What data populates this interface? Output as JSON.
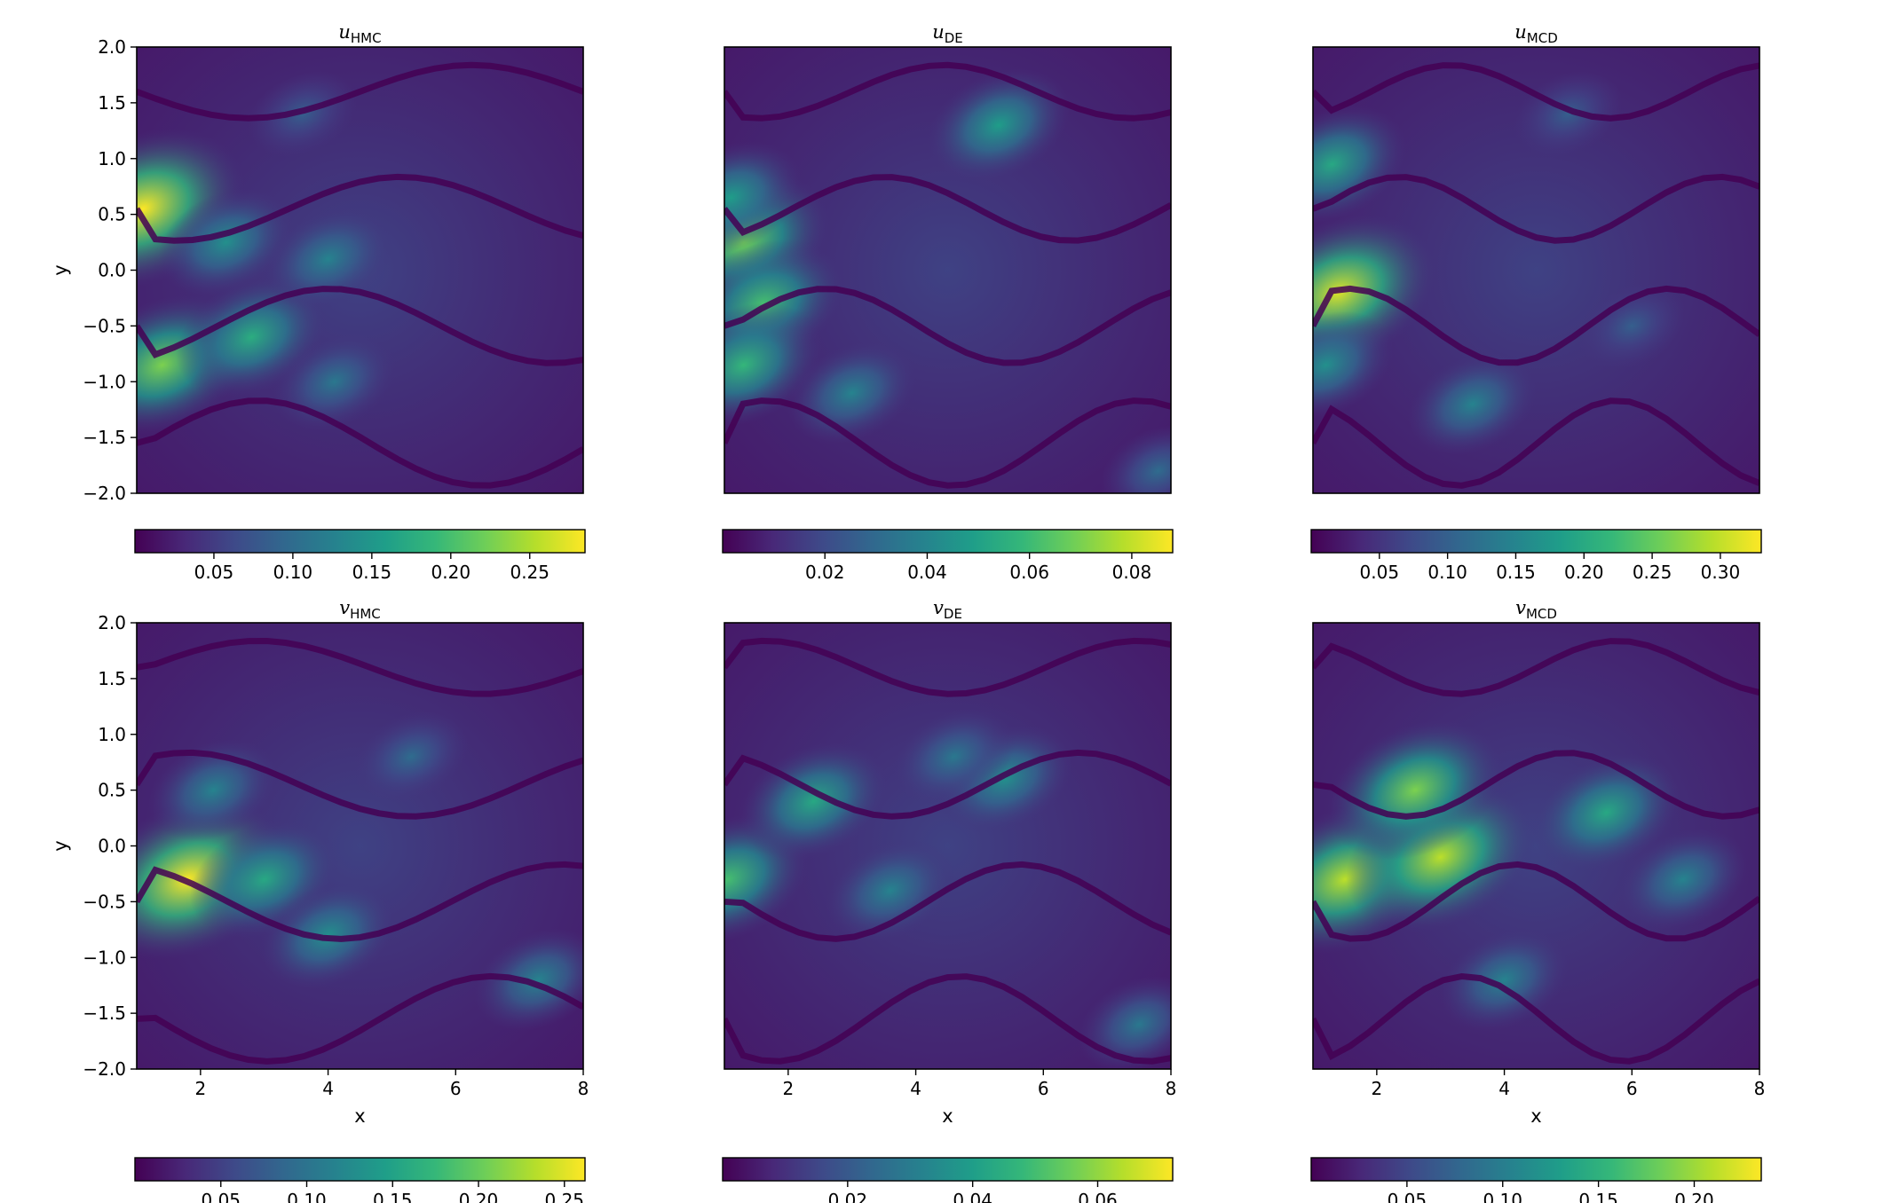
{
  "chart_data": [
    {
      "type": "heatmap",
      "title_main": "u",
      "title_sub": "HMC",
      "xlabel": "",
      "ylabel": "y",
      "xlim": [
        1,
        8
      ],
      "ylim": [
        -2,
        2
      ],
      "xticks": [],
      "yticks": [
        "2.0",
        "1.5",
        "1.0",
        "0.5",
        "0.0",
        "−0.5",
        "−1.0",
        "−1.5",
        "−2.0"
      ],
      "colormap": "viridis",
      "colorbar": {
        "min": 0.0,
        "max": 0.285,
        "ticks": [
          0.05,
          0.1,
          0.15,
          0.2,
          0.25
        ],
        "tick_labels": [
          "0.05",
          "0.10",
          "0.15",
          "0.20",
          "0.25"
        ]
      },
      "hotspots": [
        [
          1.1,
          0.55,
          1.0
        ],
        [
          1.4,
          -0.85,
          0.8
        ],
        [
          2.8,
          -0.6,
          0.62
        ],
        [
          2.4,
          0.25,
          0.5
        ],
        [
          4.1,
          -1.0,
          0.4
        ],
        [
          4.0,
          0.1,
          0.45
        ],
        [
          3.6,
          1.4,
          0.3
        ]
      ]
    },
    {
      "type": "heatmap",
      "title_main": "u",
      "title_sub": "DE",
      "xlabel": "",
      "ylabel": "",
      "xlim": [
        1,
        8
      ],
      "ylim": [
        -2,
        2
      ],
      "xticks": [],
      "yticks": [],
      "colormap": "viridis",
      "colorbar": {
        "min": 0.0,
        "max": 0.088,
        "ticks": [
          0.02,
          0.04,
          0.06,
          0.08
        ],
        "tick_labels": [
          "0.02",
          "0.04",
          "0.06",
          "0.08"
        ]
      },
      "hotspots": [
        [
          1.3,
          0.25,
          0.78
        ],
        [
          1.6,
          -0.3,
          0.7
        ],
        [
          1.3,
          -0.85,
          0.66
        ],
        [
          1.1,
          0.65,
          0.55
        ],
        [
          5.3,
          1.3,
          0.55
        ],
        [
          3.0,
          -1.1,
          0.45
        ],
        [
          7.8,
          -1.8,
          0.35
        ]
      ]
    },
    {
      "type": "heatmap",
      "title_main": "u",
      "title_sub": "MCD",
      "xlabel": "",
      "ylabel": "",
      "xlim": [
        1,
        8
      ],
      "ylim": [
        -2,
        2
      ],
      "xticks": [],
      "yticks": [],
      "colormap": "viridis",
      "colorbar": {
        "min": 0.0,
        "max": 0.33,
        "ticks": [
          0.05,
          0.1,
          0.15,
          0.2,
          0.25,
          0.3
        ],
        "tick_labels": [
          "0.05",
          "0.10",
          "0.15",
          "0.20",
          "0.25",
          "0.30"
        ]
      },
      "hotspots": [
        [
          1.4,
          -0.2,
          0.95
        ],
        [
          1.3,
          0.95,
          0.6
        ],
        [
          1.2,
          -0.85,
          0.5
        ],
        [
          3.5,
          -1.2,
          0.45
        ],
        [
          5.0,
          1.4,
          0.3
        ],
        [
          6.0,
          -0.5,
          0.3
        ]
      ]
    },
    {
      "type": "heatmap",
      "title_main": "v",
      "title_sub": "HMC",
      "xlabel": "x",
      "ylabel": "y",
      "xlim": [
        1,
        8
      ],
      "ylim": [
        -2,
        2
      ],
      "xticks": [
        "2",
        "4",
        "6",
        "8"
      ],
      "yticks": [
        "2.0",
        "1.5",
        "1.0",
        "0.5",
        "0.0",
        "−0.5",
        "−1.0",
        "−1.5",
        "−2.0"
      ],
      "colormap": "viridis",
      "colorbar": {
        "min": 0.0,
        "max": 0.262,
        "ticks": [
          0.05,
          0.1,
          0.15,
          0.2,
          0.25
        ],
        "tick_labels": [
          "0.05",
          "0.10",
          "0.15",
          "0.20",
          "0.25"
        ]
      },
      "hotspots": [
        [
          1.8,
          -0.3,
          1.0
        ],
        [
          3.0,
          -0.3,
          0.6
        ],
        [
          4.0,
          -0.8,
          0.5
        ],
        [
          2.2,
          0.5,
          0.45
        ],
        [
          5.3,
          0.8,
          0.35
        ],
        [
          7.3,
          -1.2,
          0.45
        ]
      ]
    },
    {
      "type": "heatmap",
      "title_main": "v",
      "title_sub": "DE",
      "xlabel": "x",
      "ylabel": "",
      "xlim": [
        1,
        8
      ],
      "ylim": [
        -2,
        2
      ],
      "xticks": [
        "2",
        "4",
        "6",
        "8"
      ],
      "yticks": [],
      "colormap": "viridis",
      "colorbar": {
        "min": 0.0,
        "max": 0.072,
        "ticks": [
          0.02,
          0.04,
          0.06
        ],
        "tick_labels": [
          "0.02",
          "0.04",
          "0.06"
        ]
      },
      "hotspots": [
        [
          1.05,
          -0.3,
          0.7
        ],
        [
          2.4,
          0.4,
          0.6
        ],
        [
          5.4,
          0.6,
          0.5
        ],
        [
          3.6,
          -0.4,
          0.45
        ],
        [
          7.5,
          -1.6,
          0.4
        ],
        [
          4.6,
          0.8,
          0.4
        ]
      ]
    },
    {
      "type": "heatmap",
      "title_main": "v",
      "title_sub": "MCD",
      "xlabel": "x",
      "ylabel": "",
      "xlim": [
        1,
        8
      ],
      "ylim": [
        -2,
        2
      ],
      "xticks": [
        "2",
        "4",
        "6",
        "8"
      ],
      "yticks": [],
      "colormap": "viridis",
      "colorbar": {
        "min": 0.0,
        "max": 0.235,
        "ticks": [
          0.05,
          0.1,
          0.15,
          0.2
        ],
        "tick_labels": [
          "0.05",
          "0.10",
          "0.15",
          "0.20"
        ]
      },
      "hotspots": [
        [
          1.5,
          -0.3,
          0.9
        ],
        [
          3.0,
          -0.1,
          0.9
        ],
        [
          2.6,
          0.5,
          0.8
        ],
        [
          5.6,
          0.3,
          0.6
        ],
        [
          6.8,
          -0.3,
          0.45
        ],
        [
          4.0,
          -1.2,
          0.45
        ]
      ]
    }
  ]
}
